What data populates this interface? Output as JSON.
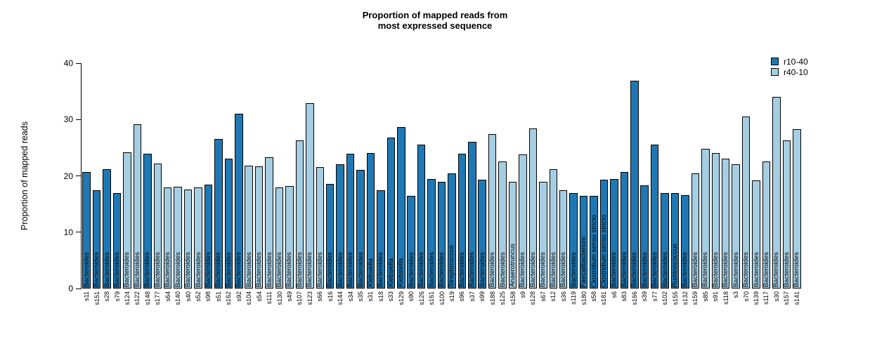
{
  "chart_data": {
    "type": "bar",
    "title": "Proportion of mapped reads from most expressed sequence",
    "title_lines": [
      "Proportion of mapped reads from",
      "most expressed sequence"
    ],
    "xlabel": "",
    "ylabel": "Proportion of mapped reads",
    "ylim": [
      0,
      40
    ],
    "yticks": [
      0,
      10,
      20,
      30,
      40
    ],
    "grid": false,
    "bar_border_color": "#000000",
    "group_colors": {
      "r10-40": "#1F78B4",
      "r40-10": "#A6CEE3"
    },
    "legend": {
      "position": "top-right",
      "entries": [
        {
          "label": "r10-40",
          "color": "#1F78B4"
        },
        {
          "label": "r40-10",
          "color": "#A6CEE3"
        }
      ]
    },
    "bars": [
      {
        "sample": "s11",
        "value": 20.7,
        "group": "r10-40",
        "bar_label": "Bacteroides"
      },
      {
        "sample": "s151",
        "value": 17.5,
        "group": "r10-40",
        "bar_label": "Bacteroides"
      },
      {
        "sample": "s28",
        "value": 21.2,
        "group": "r10-40",
        "bar_label": "Bacteroides"
      },
      {
        "sample": "s79",
        "value": 16.9,
        "group": "r10-40",
        "bar_label": "Bacteroides"
      },
      {
        "sample": "s124",
        "value": 24.2,
        "group": "r40-10",
        "bar_label": "Bacteroides"
      },
      {
        "sample": "s122",
        "value": 29.1,
        "group": "r40-10",
        "bar_label": "Bacteroides"
      },
      {
        "sample": "s148",
        "value": 23.9,
        "group": "r10-40",
        "bar_label": "Bacteroides"
      },
      {
        "sample": "s177",
        "value": 22.2,
        "group": "r40-10",
        "bar_label": "Bacteroides"
      },
      {
        "sample": "s64",
        "value": 17.9,
        "group": "r40-10",
        "bar_label": "Bacteroides"
      },
      {
        "sample": "s140",
        "value": 18.1,
        "group": "r40-10",
        "bar_label": "Bacteroides"
      },
      {
        "sample": "s40",
        "value": 17.6,
        "group": "r40-10",
        "bar_label": "Bacteroides"
      },
      {
        "sample": "s52",
        "value": 18.0,
        "group": "r40-10",
        "bar_label": "Bacteroides"
      },
      {
        "sample": "s98",
        "value": 18.5,
        "group": "r10-40",
        "bar_label": "Bacteroides"
      },
      {
        "sample": "s51",
        "value": 26.5,
        "group": "r10-40",
        "bar_label": "Bacteroides"
      },
      {
        "sample": "s162",
        "value": 23.0,
        "group": "r10-40",
        "bar_label": "Bacteroides"
      },
      {
        "sample": "s92",
        "value": 31.0,
        "group": "r10-40",
        "bar_label": "Bacteroides"
      },
      {
        "sample": "s104",
        "value": 21.8,
        "group": "r40-10",
        "bar_label": "Bacteroides"
      },
      {
        "sample": "s54",
        "value": 21.7,
        "group": "r40-10",
        "bar_label": "Bacteroides"
      },
      {
        "sample": "s111",
        "value": 23.3,
        "group": "r40-10",
        "bar_label": "Bacteroides"
      },
      {
        "sample": "s130",
        "value": 18.0,
        "group": "r40-10",
        "bar_label": "Bacteroides"
      },
      {
        "sample": "s49",
        "value": 18.2,
        "group": "r40-10",
        "bar_label": "Bacteroides"
      },
      {
        "sample": "s107",
        "value": 26.3,
        "group": "r40-10",
        "bar_label": "Bacteroides"
      },
      {
        "sample": "s123",
        "value": 32.9,
        "group": "r40-10",
        "bar_label": "Bacteroides"
      },
      {
        "sample": "s66",
        "value": 21.6,
        "group": "r40-10",
        "bar_label": "Bacteroides"
      },
      {
        "sample": "s16",
        "value": 18.6,
        "group": "r10-40",
        "bar_label": "Bacteroides"
      },
      {
        "sample": "s144",
        "value": 22.0,
        "group": "r10-40",
        "bar_label": "Bacteroides"
      },
      {
        "sample": "s34",
        "value": 23.9,
        "group": "r10-40",
        "bar_label": "Bacteroides"
      },
      {
        "sample": "s35",
        "value": 21.0,
        "group": "r10-40",
        "bar_label": "Bacteroides"
      },
      {
        "sample": "s31",
        "value": 24.0,
        "group": "r10-40",
        "bar_label": "Klebsiella"
      },
      {
        "sample": "s18",
        "value": 17.4,
        "group": "r10-40",
        "bar_label": "Bacteroides"
      },
      {
        "sample": "s33",
        "value": 26.8,
        "group": "r10-40",
        "bar_label": "Klebsiella"
      },
      {
        "sample": "s129",
        "value": 28.7,
        "group": "r10-40",
        "bar_label": "Klebsiella"
      },
      {
        "sample": "s90",
        "value": 16.5,
        "group": "r10-40",
        "bar_label": "Bacteroides"
      },
      {
        "sample": "s126",
        "value": 25.6,
        "group": "r10-40",
        "bar_label": "Bacteroides"
      },
      {
        "sample": "s161",
        "value": 19.5,
        "group": "r10-40",
        "bar_label": "Bacteroides"
      },
      {
        "sample": "s100",
        "value": 19.0,
        "group": "r10-40",
        "bar_label": "Bacteroides"
      },
      {
        "sample": "s19",
        "value": 20.4,
        "group": "r10-40",
        "bar_label": "Streptococcus"
      },
      {
        "sample": "s96",
        "value": 23.9,
        "group": "r10-40",
        "bar_label": "Bacteroides"
      },
      {
        "sample": "s37",
        "value": 26.0,
        "group": "r10-40",
        "bar_label": "Bacteroides"
      },
      {
        "sample": "s99",
        "value": 19.3,
        "group": "r10-40",
        "bar_label": "Bacteroides"
      },
      {
        "sample": "s188",
        "value": 27.4,
        "group": "r40-10",
        "bar_label": "Bacteroides"
      },
      {
        "sample": "s125",
        "value": 22.5,
        "group": "r40-10",
        "bar_label": "Bacteroides"
      },
      {
        "sample": "s158",
        "value": 19.0,
        "group": "r40-10",
        "bar_label": "Anaerotruncus"
      },
      {
        "sample": "s9",
        "value": 23.8,
        "group": "r40-10",
        "bar_label": "Bacteroides"
      },
      {
        "sample": "s128",
        "value": 28.4,
        "group": "r40-10",
        "bar_label": "Bacteroides"
      },
      {
        "sample": "s67",
        "value": 19.0,
        "group": "r40-10",
        "bar_label": "Bacteroides"
      },
      {
        "sample": "s12",
        "value": 21.2,
        "group": "r40-10",
        "bar_label": "Bacteroides"
      },
      {
        "sample": "s36",
        "value": 17.5,
        "group": "r40-10",
        "bar_label": "Bacteroides"
      },
      {
        "sample": "s119",
        "value": 16.9,
        "group": "r10-40",
        "bar_label": "Bacteroides"
      },
      {
        "sample": "s180",
        "value": 16.4,
        "group": "r10-40",
        "bar_label": "Faecalibacterium"
      },
      {
        "sample": "s58",
        "value": 16.5,
        "group": "r10-40",
        "bar_label": "Clostridium sensu stricto"
      },
      {
        "sample": "s181",
        "value": 19.3,
        "group": "r10-40",
        "bar_label": "Clostridium sensu stricto"
      },
      {
        "sample": "s6",
        "value": 19.4,
        "group": "r10-40",
        "bar_label": "Bacteroides"
      },
      {
        "sample": "s83",
        "value": 20.7,
        "group": "r10-40",
        "bar_label": "Bacteroides"
      },
      {
        "sample": "s166",
        "value": 36.9,
        "group": "r10-40",
        "bar_label": "Bacteroides"
      },
      {
        "sample": "s39",
        "value": 18.3,
        "group": "r10-40",
        "bar_label": "Bacteroides"
      },
      {
        "sample": "s77",
        "value": 25.5,
        "group": "r10-40",
        "bar_label": "Bacteroides"
      },
      {
        "sample": "s102",
        "value": 17.0,
        "group": "r10-40",
        "bar_label": "Bacteroides"
      },
      {
        "sample": "s155",
        "value": 17.0,
        "group": "r10-40",
        "bar_label": "Ruminococcus"
      },
      {
        "sample": "s132",
        "value": 16.6,
        "group": "r10-40",
        "bar_label": "Bacteroides"
      },
      {
        "sample": "s159",
        "value": 20.4,
        "group": "r40-10",
        "bar_label": "Bacteroides"
      },
      {
        "sample": "s85",
        "value": 24.8,
        "group": "r40-10",
        "bar_label": "Bacteroides"
      },
      {
        "sample": "s91",
        "value": 24.0,
        "group": "r40-10",
        "bar_label": "Bacteroides"
      },
      {
        "sample": "s118",
        "value": 23.0,
        "group": "r40-10",
        "bar_label": "Bacteroides"
      },
      {
        "sample": "s3",
        "value": 22.0,
        "group": "r40-10",
        "bar_label": "Bacteroides"
      },
      {
        "sample": "s70",
        "value": 30.5,
        "group": "r40-10",
        "bar_label": "Bacteroides"
      },
      {
        "sample": "s139",
        "value": 19.2,
        "group": "r40-10",
        "bar_label": "Bacteroides"
      },
      {
        "sample": "s117",
        "value": 22.5,
        "group": "r40-10",
        "bar_label": "Bacteroides"
      },
      {
        "sample": "s30",
        "value": 34.0,
        "group": "r40-10",
        "bar_label": "Bacteroides"
      },
      {
        "sample": "s157",
        "value": 26.3,
        "group": "r40-10",
        "bar_label": "Bacteroides"
      },
      {
        "sample": "s141",
        "value": 28.3,
        "group": "r40-10",
        "bar_label": "Bacteroides"
      }
    ]
  }
}
